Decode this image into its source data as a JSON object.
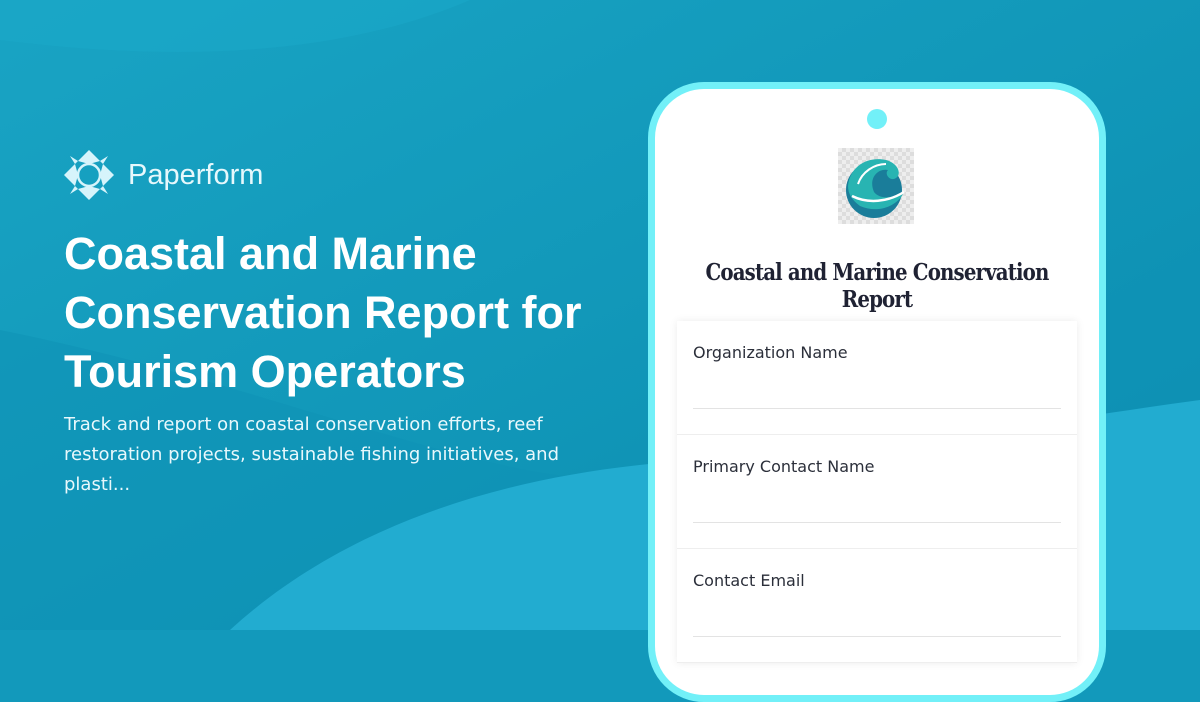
{
  "brand": {
    "name": "Paperform",
    "icon": "paperform-logo-icon"
  },
  "headline": "Coastal and Marine Conservation Report for Tourism Operators",
  "description": "Track and report on coastal conservation efforts, reef restoration projects, sustainable fishing initiatives, and plasti...",
  "form": {
    "logo": "wave-logo-icon",
    "title": "Coastal and Marine Conservation Report",
    "fields": [
      {
        "label": "Organization Name"
      },
      {
        "label": "Primary Contact Name"
      },
      {
        "label": "Contact Email"
      }
    ]
  },
  "colors": {
    "background": "#1299bb",
    "phone_border": "#72f0f8"
  }
}
